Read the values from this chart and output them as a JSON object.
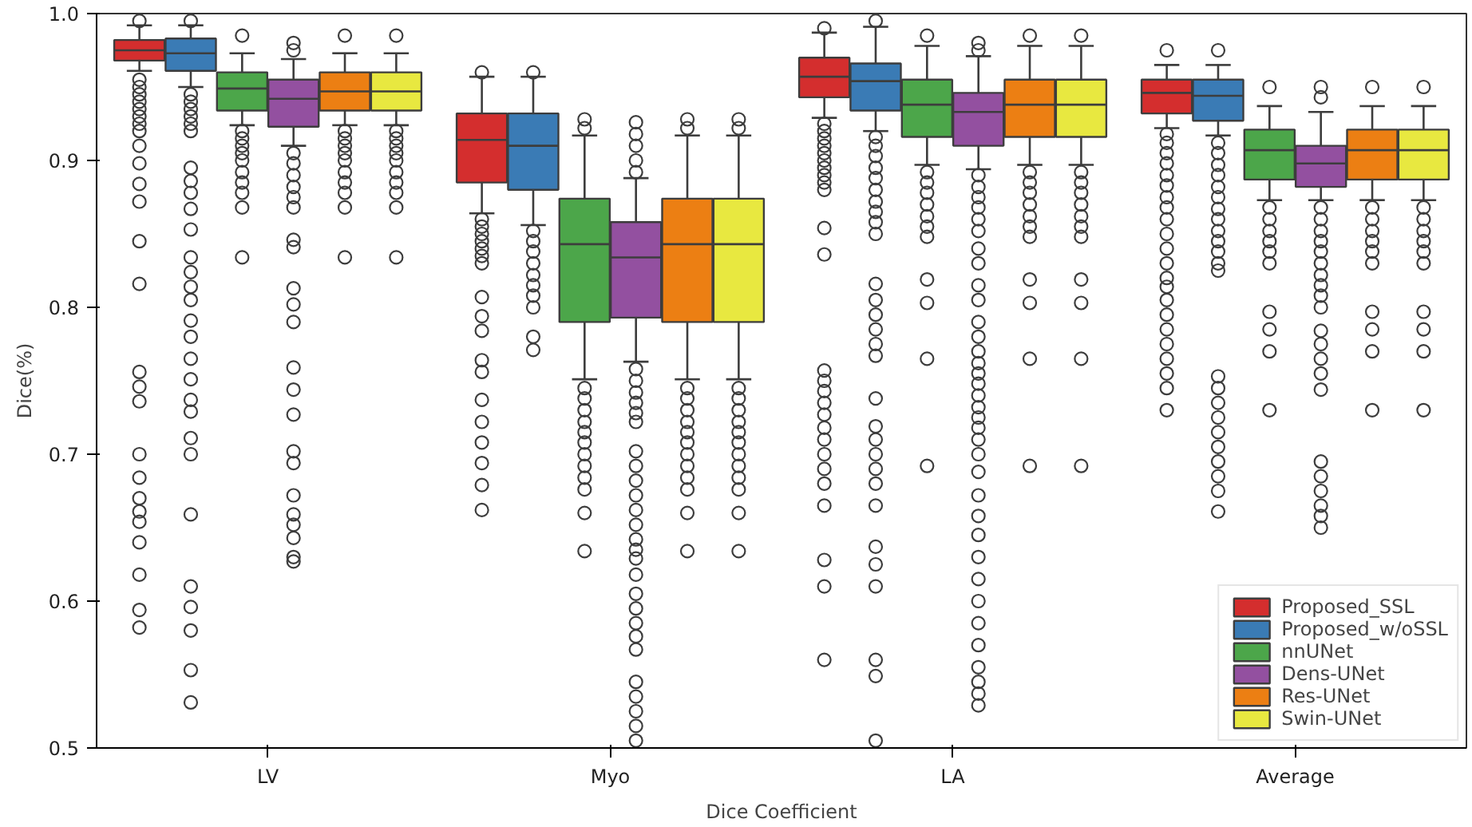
{
  "chart_data": {
    "type": "box",
    "xlabel": "Dice Coefficient",
    "ylabel": "Dice(%)",
    "categories": [
      "LV",
      "Myo",
      "LA",
      "Average"
    ],
    "ylim": [
      0.5,
      1.0
    ],
    "yticks": [
      0.5,
      0.6,
      0.7,
      0.8,
      0.9,
      {
        "value": 1,
        "label": "1.0"
      }
    ],
    "grid": false,
    "legend": "bottom right",
    "marker": "circle",
    "series": [
      {
        "name": "Proposed_SSL",
        "color": "#d42e2e",
        "boxes": [
          {
            "low": 0.961,
            "q1": 0.968,
            "median": 0.975,
            "q3": 0.982,
            "high": 0.992,
            "outliers": [
              0.995,
              0.955,
              0.95,
              0.945,
              0.94,
              0.935,
              0.93,
              0.925,
              0.92,
              0.91,
              0.898,
              0.884,
              0.872,
              0.845,
              0.816,
              0.756,
              0.746,
              0.736,
              0.7,
              0.684,
              0.67,
              0.661,
              0.654,
              0.64,
              0.618,
              0.594,
              0.582
            ]
          },
          {
            "low": 0.864,
            "q1": 0.885,
            "median": 0.914,
            "q3": 0.932,
            "high": 0.957,
            "outliers": [
              0.96,
              0.86,
              0.855,
              0.85,
              0.845,
              0.84,
              0.835,
              0.83,
              0.807,
              0.794,
              0.784,
              0.764,
              0.756,
              0.737,
              0.722,
              0.708,
              0.694,
              0.679,
              0.662
            ]
          },
          {
            "low": 0.929,
            "q1": 0.943,
            "median": 0.957,
            "q3": 0.97,
            "high": 0.987,
            "outliers": [
              0.99,
              0.925,
              0.92,
              0.915,
              0.91,
              0.905,
              0.9,
              0.895,
              0.89,
              0.885,
              0.88,
              0.854,
              0.836,
              0.757,
              0.75,
              0.743,
              0.735,
              0.727,
              0.718,
              0.71,
              0.7,
              0.69,
              0.68,
              0.665,
              0.628,
              0.61,
              0.56
            ]
          },
          {
            "low": 0.922,
            "q1": 0.932,
            "median": 0.946,
            "q3": 0.955,
            "high": 0.965,
            "outliers": [
              0.975,
              0.918,
              0.912,
              0.905,
              0.898,
              0.89,
              0.883,
              0.875,
              0.868,
              0.86,
              0.85,
              0.84,
              0.83,
              0.82,
              0.814,
              0.805,
              0.795,
              0.785,
              0.775,
              0.765,
              0.755,
              0.745,
              0.73
            ]
          }
        ]
      },
      {
        "name": "Proposed_w/oSSL",
        "color": "#3a7bb5",
        "boxes": [
          {
            "low": 0.95,
            "q1": 0.961,
            "median": 0.973,
            "q3": 0.983,
            "high": 0.992,
            "outliers": [
              0.995,
              0.945,
              0.94,
              0.935,
              0.93,
              0.925,
              0.92,
              0.895,
              0.886,
              0.878,
              0.867,
              0.853,
              0.834,
              0.824,
              0.814,
              0.805,
              0.791,
              0.78,
              0.765,
              0.751,
              0.737,
              0.729,
              0.711,
              0.7,
              0.659,
              0.61,
              0.596,
              0.58,
              0.553,
              0.531
            ]
          },
          {
            "low": 0.856,
            "q1": 0.88,
            "median": 0.91,
            "q3": 0.932,
            "high": 0.957,
            "outliers": [
              0.96,
              0.852,
              0.845,
              0.838,
              0.83,
              0.822,
              0.815,
              0.808,
              0.8,
              0.78,
              0.771
            ]
          },
          {
            "low": 0.92,
            "q1": 0.934,
            "median": 0.954,
            "q3": 0.966,
            "high": 0.991,
            "outliers": [
              0.995,
              0.916,
              0.91,
              0.903,
              0.895,
              0.888,
              0.88,
              0.872,
              0.865,
              0.858,
              0.85,
              0.816,
              0.805,
              0.795,
              0.785,
              0.775,
              0.767,
              0.738,
              0.719,
              0.71,
              0.7,
              0.69,
              0.68,
              0.665,
              0.637,
              0.625,
              0.61,
              0.56,
              0.549,
              0.505
            ]
          },
          {
            "low": 0.917,
            "q1": 0.927,
            "median": 0.944,
            "q3": 0.955,
            "high": 0.965,
            "outliers": [
              0.975,
              0.912,
              0.905,
              0.897,
              0.89,
              0.882,
              0.875,
              0.867,
              0.86,
              0.852,
              0.845,
              0.838,
              0.83,
              0.825,
              0.753,
              0.745,
              0.735,
              0.725,
              0.715,
              0.705,
              0.695,
              0.685,
              0.675,
              0.661
            ]
          }
        ]
      },
      {
        "name": "nnUNet",
        "color": "#4ca64a",
        "boxes": [
          {
            "low": 0.924,
            "q1": 0.934,
            "median": 0.949,
            "q3": 0.96,
            "high": 0.973,
            "outliers": [
              0.985,
              0.92,
              0.915,
              0.91,
              0.905,
              0.9,
              0.892,
              0.885,
              0.878,
              0.868,
              0.834
            ]
          },
          {
            "low": 0.751,
            "q1": 0.79,
            "median": 0.843,
            "q3": 0.874,
            "high": 0.917,
            "outliers": [
              0.922,
              0.928,
              0.745,
              0.738,
              0.73,
              0.722,
              0.715,
              0.708,
              0.7,
              0.692,
              0.684,
              0.676,
              0.66,
              0.634
            ]
          },
          {
            "low": 0.897,
            "q1": 0.916,
            "median": 0.938,
            "q3": 0.955,
            "high": 0.978,
            "outliers": [
              0.985,
              0.892,
              0.885,
              0.878,
              0.87,
              0.862,
              0.855,
              0.848,
              0.819,
              0.803,
              0.765,
              0.692
            ]
          },
          {
            "low": 0.873,
            "q1": 0.887,
            "median": 0.907,
            "q3": 0.921,
            "high": 0.937,
            "outliers": [
              0.95,
              0.868,
              0.86,
              0.852,
              0.845,
              0.838,
              0.83,
              0.797,
              0.785,
              0.77,
              0.73
            ]
          }
        ]
      },
      {
        "name": "Dens-UNet",
        "color": "#9350a0",
        "boxes": [
          {
            "low": 0.91,
            "q1": 0.923,
            "median": 0.942,
            "q3": 0.955,
            "high": 0.969,
            "outliers": [
              0.975,
              0.98,
              0.905,
              0.898,
              0.89,
              0.882,
              0.875,
              0.868,
              0.846,
              0.841,
              0.813,
              0.802,
              0.79,
              0.759,
              0.744,
              0.727,
              0.702,
              0.694,
              0.672,
              0.659,
              0.652,
              0.643,
              0.63,
              0.627
            ]
          },
          {
            "low": 0.763,
            "q1": 0.793,
            "median": 0.834,
            "q3": 0.858,
            "high": 0.888,
            "outliers": [
              0.892,
              0.9,
              0.91,
              0.918,
              0.926,
              0.758,
              0.75,
              0.742,
              0.735,
              0.728,
              0.722,
              0.702,
              0.692,
              0.682,
              0.672,
              0.662,
              0.652,
              0.642,
              0.635,
              0.629,
              0.618,
              0.605,
              0.595,
              0.585,
              0.576,
              0.567,
              0.545,
              0.535,
              0.525,
              0.515,
              0.505
            ]
          },
          {
            "low": 0.894,
            "q1": 0.91,
            "median": 0.933,
            "q3": 0.946,
            "high": 0.971,
            "outliers": [
              0.975,
              0.98,
              0.89,
              0.882,
              0.875,
              0.868,
              0.86,
              0.852,
              0.84,
              0.83,
              0.815,
              0.805,
              0.79,
              0.78,
              0.77,
              0.762,
              0.755,
              0.748,
              0.74,
              0.732,
              0.725,
              0.718,
              0.71,
              0.7,
              0.688,
              0.672,
              0.658,
              0.645,
              0.63,
              0.615,
              0.6,
              0.585,
              0.57,
              0.555,
              0.545,
              0.537,
              0.529
            ]
          },
          {
            "low": 0.873,
            "q1": 0.882,
            "median": 0.898,
            "q3": 0.91,
            "high": 0.933,
            "outliers": [
              0.95,
              0.943,
              0.868,
              0.86,
              0.852,
              0.845,
              0.838,
              0.83,
              0.822,
              0.815,
              0.808,
              0.8,
              0.784,
              0.775,
              0.765,
              0.755,
              0.744,
              0.695,
              0.685,
              0.675,
              0.665,
              0.658,
              0.65
            ]
          }
        ]
      },
      {
        "name": "Res-UNet",
        "color": "#ec7f13",
        "boxes": [
          {
            "low": 0.924,
            "q1": 0.934,
            "median": 0.947,
            "q3": 0.96,
            "high": 0.973,
            "outliers": [
              0.985,
              0.92,
              0.915,
              0.91,
              0.905,
              0.9,
              0.892,
              0.885,
              0.878,
              0.868,
              0.834
            ]
          },
          {
            "low": 0.751,
            "q1": 0.79,
            "median": 0.843,
            "q3": 0.874,
            "high": 0.917,
            "outliers": [
              0.922,
              0.928,
              0.745,
              0.738,
              0.73,
              0.722,
              0.715,
              0.708,
              0.7,
              0.692,
              0.684,
              0.676,
              0.66,
              0.634
            ]
          },
          {
            "low": 0.897,
            "q1": 0.916,
            "median": 0.938,
            "q3": 0.955,
            "high": 0.978,
            "outliers": [
              0.985,
              0.892,
              0.885,
              0.878,
              0.87,
              0.862,
              0.855,
              0.848,
              0.819,
              0.803,
              0.765,
              0.692
            ]
          },
          {
            "low": 0.873,
            "q1": 0.887,
            "median": 0.907,
            "q3": 0.921,
            "high": 0.937,
            "outliers": [
              0.95,
              0.868,
              0.86,
              0.852,
              0.845,
              0.838,
              0.83,
              0.797,
              0.785,
              0.77,
              0.73
            ]
          }
        ]
      },
      {
        "name": "Swin-UNet",
        "color": "#e8e840",
        "boxes": [
          {
            "low": 0.924,
            "q1": 0.934,
            "median": 0.947,
            "q3": 0.96,
            "high": 0.973,
            "outliers": [
              0.985,
              0.92,
              0.915,
              0.91,
              0.905,
              0.9,
              0.892,
              0.885,
              0.878,
              0.868,
              0.834
            ]
          },
          {
            "low": 0.751,
            "q1": 0.79,
            "median": 0.843,
            "q3": 0.874,
            "high": 0.917,
            "outliers": [
              0.922,
              0.928,
              0.745,
              0.738,
              0.73,
              0.722,
              0.715,
              0.708,
              0.7,
              0.692,
              0.684,
              0.676,
              0.66,
              0.634
            ]
          },
          {
            "low": 0.897,
            "q1": 0.916,
            "median": 0.938,
            "q3": 0.955,
            "high": 0.978,
            "outliers": [
              0.985,
              0.892,
              0.885,
              0.878,
              0.87,
              0.862,
              0.855,
              0.848,
              0.819,
              0.803,
              0.765,
              0.692
            ]
          },
          {
            "low": 0.873,
            "q1": 0.887,
            "median": 0.907,
            "q3": 0.921,
            "high": 0.937,
            "outliers": [
              0.95,
              0.868,
              0.86,
              0.852,
              0.845,
              0.838,
              0.83,
              0.797,
              0.785,
              0.77,
              0.73
            ]
          }
        ]
      }
    ]
  }
}
